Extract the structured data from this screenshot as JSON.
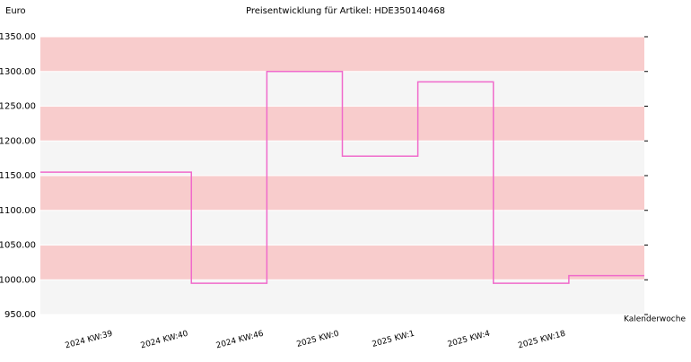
{
  "chart_data": {
    "type": "step",
    "title": "Preisentwicklung für Artikel: HDE350140468",
    "y_label": "Euro",
    "x_label": "Kalenderwoche",
    "categories": [
      "2024 KW:39",
      "2024 KW:40",
      "2024 KW:46",
      "2025 KW:0",
      "2025 KW:1",
      "2025 KW:4",
      "2025 KW:18"
    ],
    "values": [
      1155,
      995,
      1300,
      1178,
      1285,
      995,
      1006
    ],
    "color": "#f06acb",
    "ylim": [
      950,
      1350
    ],
    "yticks": [
      {
        "value": 950,
        "label": "950.00"
      },
      {
        "value": 1000,
        "label": "1000.00"
      },
      {
        "value": 1050,
        "label": "1050.00"
      },
      {
        "value": 1100,
        "label": "1100.00"
      },
      {
        "value": 1150,
        "label": "1150.00"
      },
      {
        "value": 1200,
        "label": "1200.00"
      },
      {
        "value": 1250,
        "label": "1250.00"
      },
      {
        "value": 1300,
        "label": "1300.00"
      },
      {
        "value": 1350,
        "label": "1350.00"
      }
    ],
    "band_colors": [
      "#f5f5f5",
      "#f8cccc"
    ]
  }
}
